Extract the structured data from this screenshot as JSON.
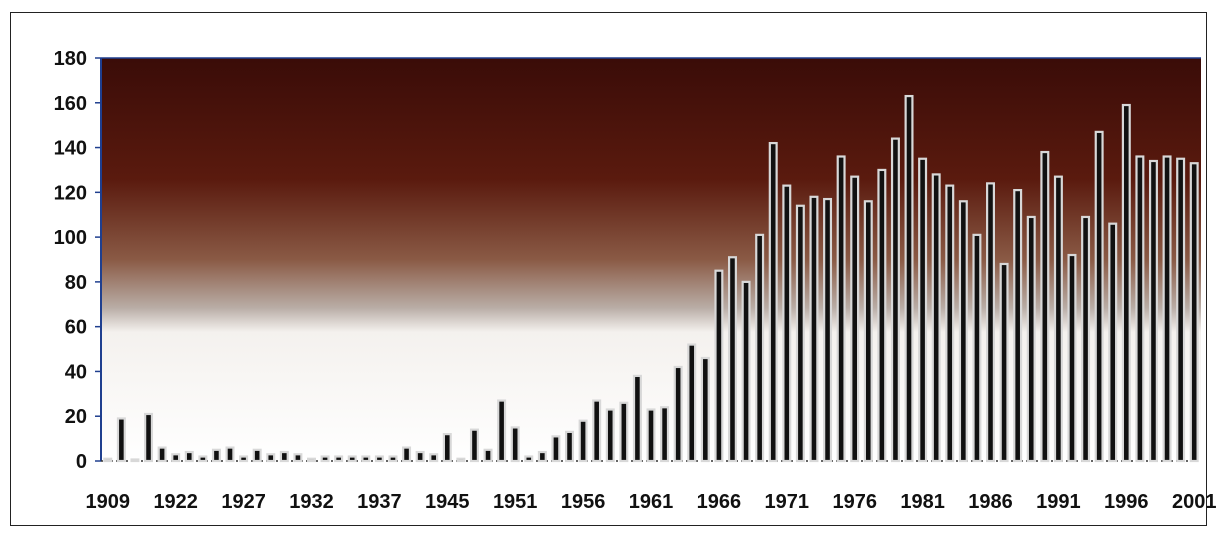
{
  "chart_data": {
    "type": "bar",
    "title": "",
    "xlabel": "",
    "ylabel": "",
    "ylim": [
      0,
      180
    ],
    "yticks": [
      0,
      20,
      40,
      60,
      80,
      100,
      120,
      140,
      160,
      180
    ],
    "grid": false,
    "legend": "none",
    "colors": {
      "bar_fill": "#111111",
      "bar_outline": "#d8d8d8",
      "axis": "#1f3f8f",
      "background_top": "#3a0c08",
      "background_mid": "#8a5a45",
      "background_low": "#ffffff"
    },
    "x_tick_labels": [
      "1909",
      "1922",
      "1927",
      "1932",
      "1937",
      "1945",
      "1951",
      "1956",
      "1961",
      "1966",
      "1971",
      "1976",
      "1981",
      "1986",
      "1991",
      "1996",
      "2001"
    ],
    "x_tick_label_bar_index": [
      0,
      5,
      10,
      15,
      20,
      25,
      30,
      35,
      40,
      45,
      50,
      55,
      60,
      65,
      70,
      75,
      80
    ],
    "values": [
      1,
      19,
      0,
      21,
      6,
      3,
      4,
      2,
      5,
      6,
      2,
      5,
      3,
      4,
      3,
      1,
      2,
      2,
      2,
      2,
      2,
      2,
      6,
      4,
      3,
      12,
      1,
      14,
      5,
      27,
      15,
      2,
      4,
      11,
      13,
      18,
      27,
      23,
      26,
      38,
      23,
      24,
      42,
      52,
      46,
      85,
      91,
      80,
      101,
      142,
      123,
      114,
      118,
      117,
      136,
      127,
      116,
      130,
      144,
      163,
      135,
      128,
      123,
      116,
      101,
      124,
      88,
      121,
      109,
      138,
      127,
      92,
      109,
      147,
      106,
      159,
      136,
      134,
      136,
      135,
      133
    ]
  }
}
